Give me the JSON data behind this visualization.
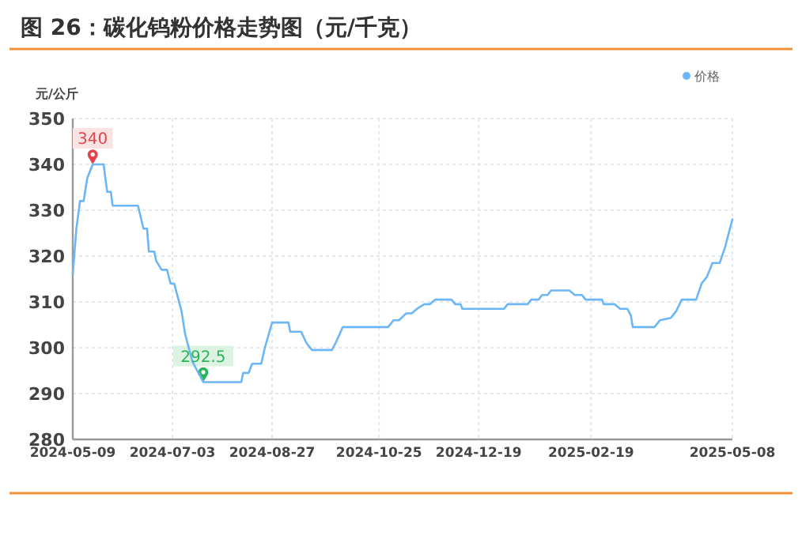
{
  "chart_data": {
    "type": "line",
    "title": "图 26：碳化钨粉价格走势图（元/千克）",
    "ylabel": "元/公斤",
    "x": [
      "2024-05-09",
      "2024-05-11",
      "2024-05-13",
      "2024-05-15",
      "2024-05-17",
      "2024-05-20",
      "2024-05-26",
      "2024-05-28",
      "2024-05-30",
      "2024-05-31",
      "2024-06-14",
      "2024-06-17",
      "2024-06-19",
      "2024-06-20",
      "2024-06-23",
      "2024-06-24",
      "2024-06-27",
      "2024-06-30",
      "2024-07-02",
      "2024-07-04",
      "2024-07-08",
      "2024-07-10",
      "2024-07-14",
      "2024-07-20",
      "2024-08-10",
      "2024-08-11",
      "2024-08-14",
      "2024-08-16",
      "2024-08-21",
      "2024-08-23",
      "2024-08-27",
      "2024-09-05",
      "2024-09-06",
      "2024-09-12",
      "2024-09-15",
      "2024-09-18",
      "2024-09-29",
      "2024-10-01",
      "2024-10-05",
      "2024-10-30",
      "2024-11-02",
      "2024-11-05",
      "2024-11-09",
      "2024-11-12",
      "2024-11-15",
      "2024-11-19",
      "2024-11-22",
      "2024-11-25",
      "2024-12-04",
      "2024-12-06",
      "2024-12-09",
      "2024-12-10",
      "2025-01-02",
      "2025-01-04",
      "2025-01-15",
      "2025-01-17",
      "2025-01-21",
      "2025-01-23",
      "2025-01-26",
      "2025-01-28",
      "2025-02-07",
      "2025-02-10",
      "2025-02-14",
      "2025-02-16",
      "2025-02-25",
      "2025-02-26",
      "2025-03-04",
      "2025-03-07",
      "2025-03-11",
      "2025-03-13",
      "2025-03-14",
      "2025-03-26",
      "2025-03-29",
      "2025-04-04",
      "2025-04-07",
      "2025-04-10",
      "2025-04-18",
      "2025-04-21",
      "2025-04-24",
      "2025-04-27",
      "2025-05-01",
      "2025-05-04",
      "2025-05-08"
    ],
    "series": [
      {
        "name": "价格",
        "color": "#6cb6f5",
        "values": [
          316,
          326,
          332,
          332,
          337,
          340,
          340,
          334,
          334,
          331,
          331,
          326,
          326,
          321,
          321,
          319,
          317,
          317,
          314,
          314,
          308,
          303,
          297,
          292.5,
          292.5,
          294.5,
          294.5,
          296.5,
          296.5,
          300,
          305.5,
          305.5,
          303.5,
          303.5,
          301,
          299.5,
          299.5,
          301,
          304.5,
          304.5,
          306,
          306,
          307.5,
          307.5,
          308.5,
          309.5,
          309.5,
          310.5,
          310.5,
          309.5,
          309.5,
          308.5,
          308.5,
          309.5,
          309.5,
          310.5,
          310.5,
          311.5,
          311.5,
          312.5,
          312.5,
          311.5,
          311.5,
          310.5,
          310.5,
          309.5,
          309.5,
          308.5,
          308.5,
          307,
          304.5,
          304.5,
          306,
          306.5,
          308,
          310.5,
          310.5,
          314,
          315.5,
          318.5,
          318.5,
          322,
          328
        ]
      }
    ],
    "xlim": [
      "2024-05-09",
      "2025-05-08"
    ],
    "xticks": [
      "2024-05-09",
      "2024-07-03",
      "2024-08-27",
      "2024-10-25",
      "2024-12-19",
      "2025-02-19",
      "2025-05-08"
    ],
    "ylim": [
      280,
      350
    ],
    "yticks": [
      280,
      290,
      300,
      310,
      320,
      330,
      340,
      350
    ],
    "grid": true,
    "legend": "top right",
    "marker": "none",
    "line_style": "solid",
    "annotations": [
      {
        "text": "340",
        "x": "2024-05-20",
        "y": 340
      },
      {
        "text": "292.5",
        "x": "2024-07-20",
        "y": 292.5
      }
    ]
  }
}
